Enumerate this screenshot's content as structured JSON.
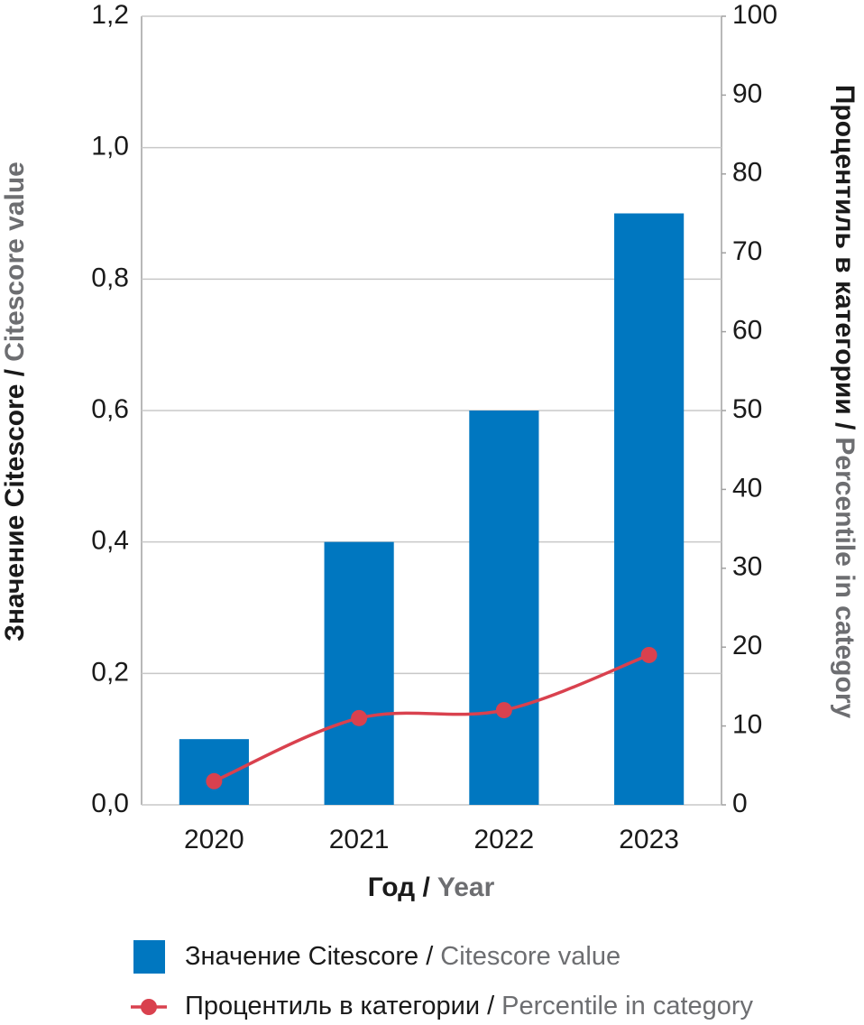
{
  "chart_data": {
    "type": "bar_line",
    "y_label": "Значение Citescore /",
    "y_label_en": "Citescore value",
    "y2_label": "Процентиль в категории /",
    "y2_label_en": "Percentile in category",
    "x_label": "Год /",
    "x_label_en": "Year",
    "categories": [
      "2020",
      "2021",
      "2022",
      "2023"
    ],
    "series": [
      {
        "name": "Значение Citescore /",
        "name_en": "Citescore value",
        "type": "bar",
        "color": "#0077c0",
        "values": [
          0.1,
          0.4,
          0.6,
          0.9
        ]
      },
      {
        "name": "Процентиль в категории /",
        "name_en": "Percentile in category",
        "type": "line",
        "axis": "y2",
        "color": "#d9414e",
        "values": [
          3,
          11,
          12,
          19
        ]
      }
    ],
    "ylim": [
      0,
      1.2
    ],
    "yticks": [
      {
        "value": 0,
        "label": "0,0"
      },
      {
        "value": 0.2,
        "label": "0,2"
      },
      {
        "value": 0.4,
        "label": "0,4"
      },
      {
        "value": 0.6,
        "label": "0,6"
      },
      {
        "value": 0.8,
        "label": "0,8"
      },
      {
        "value": 1.0,
        "label": "1,0"
      },
      {
        "value": 1.2,
        "label": "1,2"
      }
    ],
    "y2lim": [
      0,
      100
    ],
    "y2ticks": [
      0,
      10,
      20,
      30,
      40,
      50,
      60,
      70,
      80,
      90,
      100
    ],
    "grid": true
  }
}
